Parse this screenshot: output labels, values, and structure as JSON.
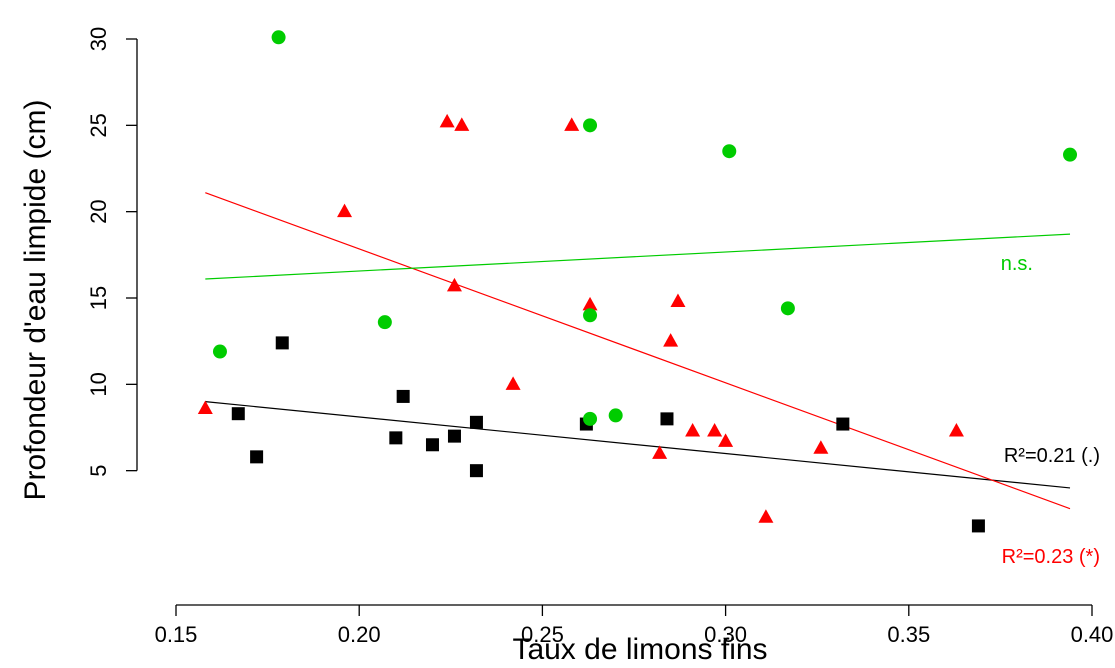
{
  "chart_data": {
    "type": "scatter",
    "title": "",
    "xlabel": "Taux de limons fins",
    "ylabel": "Profondeur d'eau limpide (cm)",
    "xlim": [
      0.15,
      0.4
    ],
    "ylim": [
      0,
      30
    ],
    "x_ticks": [
      0.15,
      0.2,
      0.25,
      0.3,
      0.35,
      0.4
    ],
    "x_tick_labels": [
      "0.15",
      "0.20",
      "0.25",
      "0.30",
      "0.35",
      "0.40"
    ],
    "y_ticks": [
      5,
      10,
      15,
      20,
      25,
      30
    ],
    "y_tick_labels": [
      "5",
      "10",
      "15",
      "20",
      "25",
      "30"
    ],
    "grid": false,
    "series": [
      {
        "marker": "square",
        "color": "#000000",
        "points": [
          [
            0.167,
            8.3
          ],
          [
            0.172,
            5.8
          ],
          [
            0.179,
            12.4
          ],
          [
            0.21,
            6.9
          ],
          [
            0.212,
            9.3
          ],
          [
            0.22,
            6.5
          ],
          [
            0.226,
            7.0
          ],
          [
            0.232,
            7.8
          ],
          [
            0.232,
            5.0
          ],
          [
            0.262,
            7.7
          ],
          [
            0.284,
            8.0
          ],
          [
            0.332,
            7.7
          ],
          [
            0.369,
            1.8
          ]
        ],
        "fit": {
          "x": [
            0.158,
            0.394
          ],
          "y": [
            9.0,
            4.0
          ]
        },
        "annotation": "R²=0.21 (.)"
      },
      {
        "marker": "triangle",
        "color": "#ff0000",
        "points": [
          [
            0.158,
            8.6
          ],
          [
            0.196,
            20.0
          ],
          [
            0.224,
            25.2
          ],
          [
            0.226,
            15.7
          ],
          [
            0.228,
            25.0
          ],
          [
            0.242,
            10.0
          ],
          [
            0.258,
            25.0
          ],
          [
            0.263,
            14.6
          ],
          [
            0.282,
            6.0
          ],
          [
            0.285,
            12.5
          ],
          [
            0.287,
            14.8
          ],
          [
            0.291,
            7.3
          ],
          [
            0.297,
            7.3
          ],
          [
            0.3,
            6.7
          ],
          [
            0.311,
            2.3
          ],
          [
            0.326,
            6.3
          ],
          [
            0.363,
            7.3
          ]
        ],
        "fit": {
          "x": [
            0.158,
            0.394
          ],
          "y": [
            21.1,
            2.8
          ]
        },
        "annotation": "R²=0.23 (*)"
      },
      {
        "marker": "circle",
        "color": "#00cc00",
        "points": [
          [
            0.162,
            11.9
          ],
          [
            0.178,
            30.1
          ],
          [
            0.207,
            13.6
          ],
          [
            0.263,
            25.0
          ],
          [
            0.263,
            14.0
          ],
          [
            0.263,
            8.0
          ],
          [
            0.27,
            8.2
          ],
          [
            0.301,
            23.5
          ],
          [
            0.317,
            14.4
          ],
          [
            0.394,
            23.3
          ]
        ],
        "fit": {
          "x": [
            0.158,
            0.394
          ],
          "y": [
            16.1,
            18.7
          ]
        },
        "annotation": "n.s."
      }
    ]
  }
}
